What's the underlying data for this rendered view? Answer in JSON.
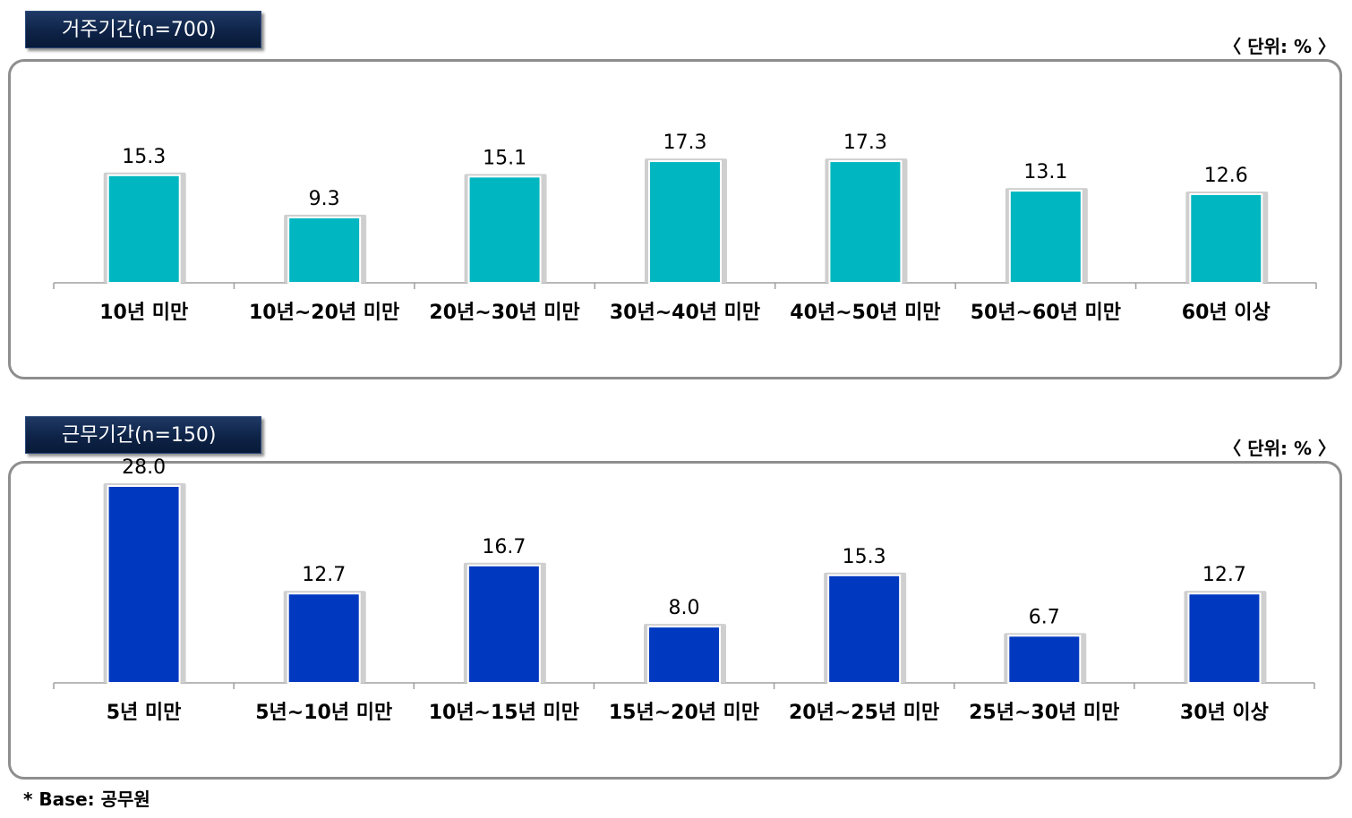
{
  "chart_data": [
    {
      "type": "bar",
      "title": "거주기간(n=700)",
      "unit_note": "〈 단위: % 〉",
      "categories": [
        "10년 미만",
        "10년~20년 미만",
        "20년~30년 미만",
        "30년~40년 미만",
        "40년~50년 미만",
        "50년~60년 미만",
        "60년 이상"
      ],
      "values": [
        15.3,
        9.3,
        15.1,
        17.3,
        17.3,
        13.1,
        12.6
      ],
      "value_labels": [
        "15.3",
        "9.3",
        "15.1",
        "17.3",
        "17.3",
        "13.1",
        "12.6"
      ],
      "color": "#00b6c0",
      "ylim": [
        0,
        28
      ],
      "grid": false,
      "xlabel": "",
      "ylabel": ""
    },
    {
      "type": "bar",
      "title": "근무기간(n=150)",
      "unit_note": "〈 단위: % 〉",
      "categories": [
        "5년 미만",
        "5년~10년 미만",
        "10년~15년 미만",
        "15년~20년 미만",
        "20년~25년 미만",
        "25년~30년 미만",
        "30년 이상"
      ],
      "values": [
        28.0,
        12.7,
        16.7,
        8.0,
        15.3,
        6.7,
        12.7
      ],
      "value_labels": [
        "28.0",
        "12.7",
        "16.7",
        "8.0",
        "15.3",
        "6.7",
        "12.7"
      ],
      "color": "#0038c0",
      "ylim": [
        0,
        28
      ],
      "grid": false,
      "xlabel": "",
      "ylabel": ""
    }
  ],
  "footnote": "* Base: 공무원"
}
